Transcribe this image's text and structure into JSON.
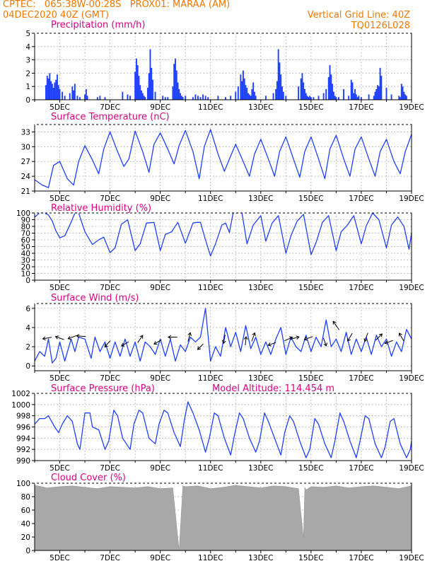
{
  "header": {
    "line1_left": "CPTEC:   065:38W-00:28S   PROX01: MARAA (AM)",
    "line2_left": "04DEC2020 40Z (GMT)",
    "line2_right": "Vertical Grid Line: 40Z",
    "line3_right": "TQ0126L028"
  },
  "colors": {
    "header": "#f07800",
    "title": "#e0007f",
    "series": "#2040ff",
    "cloud": "#a8a8a8"
  },
  "chart_data": [
    {
      "id": "precip",
      "type": "bar",
      "title": "Precipitation (mm/h)",
      "ylim": [
        0,
        5
      ],
      "yticks": [
        0,
        1,
        2,
        3,
        4,
        5
      ],
      "xlim_day": [
        4.0,
        19.0
      ],
      "xticks": [
        "5DEC",
        "7DEC",
        "9DEC",
        "11DEC",
        "13DEC",
        "15DEC",
        "17DEC",
        "19DEC"
      ],
      "x_day": [
        4.45,
        4.5,
        4.55,
        4.6,
        4.65,
        4.7,
        4.75,
        4.8,
        4.85,
        4.9,
        4.95,
        5.0,
        5.1,
        5.2,
        5.4,
        5.5,
        5.55,
        5.6,
        5.7,
        5.8,
        6.0,
        6.05,
        6.1,
        6.5,
        6.6,
        6.8,
        7.5,
        7.7,
        7.8,
        8.0,
        8.05,
        8.1,
        8.15,
        8.2,
        8.25,
        8.3,
        8.35,
        8.4,
        8.5,
        8.55,
        8.6,
        8.65,
        8.7,
        8.8,
        9.1,
        9.2,
        9.3,
        9.5,
        9.55,
        9.6,
        9.65,
        9.7,
        9.75,
        9.8,
        9.85,
        9.9,
        10.0,
        10.3,
        10.4,
        10.5,
        10.6,
        10.7,
        10.8,
        10.9,
        11.3,
        11.6,
        11.8,
        12.0,
        12.1,
        12.2,
        12.25,
        12.3,
        12.35,
        12.4,
        12.45,
        12.5,
        12.55,
        12.6,
        12.65,
        12.7,
        12.75,
        12.8,
        13.2,
        13.5,
        13.6,
        13.65,
        13.7,
        13.75,
        13.8,
        13.85,
        13.9,
        14.0,
        14.5,
        14.6,
        14.65,
        14.7,
        14.75,
        14.8,
        14.85,
        14.9,
        14.95,
        15.0,
        15.1,
        15.3,
        15.5,
        15.6,
        15.7,
        15.75,
        15.8,
        15.85,
        15.9,
        15.95,
        16.0,
        16.1,
        16.3,
        16.5,
        16.6,
        16.65,
        16.7,
        16.75,
        16.8,
        16.85,
        16.9,
        17.0,
        17.3,
        17.5,
        17.55,
        17.6,
        17.65,
        17.7,
        17.75,
        17.8,
        18.0,
        18.2,
        18.5,
        18.55,
        18.6,
        18.65,
        18.7,
        18.75,
        18.8
      ],
      "values": [
        1.1,
        1.8,
        1.6,
        2.0,
        1.4,
        1.2,
        0.9,
        1.3,
        1.5,
        1.9,
        1.1,
        0.8,
        0.6,
        0.3,
        0.5,
        1.0,
        0.7,
        1.2,
        0.3,
        0.2,
        0.4,
        0.8,
        0.3,
        0.2,
        0.3,
        0.2,
        0.6,
        0.4,
        0.3,
        2.1,
        3.1,
        2.6,
        1.8,
        1.1,
        0.7,
        0.5,
        0.3,
        0.2,
        0.9,
        2.0,
        3.8,
        2.4,
        1.5,
        0.6,
        0.3,
        0.2,
        0.2,
        1.0,
        2.7,
        3.1,
        2.2,
        1.3,
        0.8,
        0.5,
        0.3,
        0.2,
        0.3,
        0.2,
        0.4,
        0.3,
        0.2,
        0.4,
        0.3,
        0.2,
        0.3,
        0.2,
        0.3,
        0.6,
        1.0,
        1.9,
        1.4,
        2.2,
        1.6,
        1.1,
        0.9,
        0.5,
        0.4,
        0.3,
        0.8,
        1.3,
        0.6,
        0.3,
        0.3,
        0.5,
        0.8,
        1.4,
        3.8,
        2.8,
        1.9,
        1.0,
        0.6,
        0.3,
        1.0,
        1.6,
        2.0,
        1.3,
        0.8,
        0.5,
        0.3,
        0.2,
        0.3,
        0.2,
        0.2,
        0.3,
        0.5,
        0.8,
        1.7,
        2.6,
        1.9,
        1.2,
        0.6,
        0.3,
        0.2,
        0.2,
        0.8,
        0.3,
        1.5,
        1.3,
        0.5,
        0.8,
        0.4,
        0.2,
        0.3,
        0.2,
        0.4,
        0.3,
        0.6,
        0.8,
        1.1,
        1.0,
        2.4,
        1.8,
        0.9,
        0.4,
        0.3,
        0.2,
        1.2,
        1.0,
        0.6,
        0.4,
        0.3
      ]
    },
    {
      "id": "temp",
      "type": "line",
      "title": "Surface Temperature (nC)",
      "ylim": [
        21,
        34.5
      ],
      "yticks": [
        21,
        24,
        27,
        30,
        33
      ],
      "xlim_day": [
        4.0,
        19.0
      ],
      "xticks": [
        "5DEC",
        "7DEC",
        "9DEC",
        "11DEC",
        "13DEC",
        "15DEC",
        "17DEC",
        "19DEC"
      ],
      "x_day": [
        4.0,
        4.3,
        4.55,
        4.75,
        5.0,
        5.3,
        5.55,
        5.75,
        6.0,
        6.3,
        6.55,
        6.75,
        7.0,
        7.3,
        7.55,
        7.75,
        8.0,
        8.3,
        8.55,
        8.75,
        9.0,
        9.3,
        9.55,
        9.75,
        10.0,
        10.3,
        10.55,
        10.75,
        11.0,
        11.3,
        11.55,
        11.75,
        12.0,
        12.3,
        12.55,
        12.75,
        13.0,
        13.3,
        13.55,
        13.75,
        14.0,
        14.3,
        14.55,
        14.75,
        15.0,
        15.3,
        15.55,
        15.75,
        16.0,
        16.3,
        16.55,
        16.75,
        17.0,
        17.3,
        17.55,
        17.75,
        18.0,
        18.3,
        18.55,
        18.75,
        19.0
      ],
      "values": [
        23.3,
        22.2,
        21.7,
        26.2,
        27.0,
        23.5,
        22.2,
        27.0,
        30.2,
        27.3,
        24.5,
        29.5,
        33.0,
        29.0,
        26.0,
        27.5,
        33.2,
        29.0,
        24.8,
        30.5,
        32.8,
        29.5,
        26.5,
        30.2,
        33.3,
        29.0,
        23.5,
        30.0,
        33.5,
        28.5,
        25.0,
        27.5,
        30.5,
        27.0,
        24.0,
        28.5,
        31.5,
        27.5,
        24.0,
        29.0,
        32.0,
        27.5,
        23.8,
        29.0,
        32.0,
        27.5,
        23.5,
        29.5,
        32.3,
        27.5,
        24.0,
        29.5,
        32.0,
        27.5,
        24.0,
        29.0,
        31.5,
        27.0,
        24.5,
        29.0,
        32.5
      ]
    },
    {
      "id": "rh",
      "type": "line",
      "title": "Relative Humidity (%)",
      "ylim": [
        0,
        100
      ],
      "yticks": [
        0,
        10,
        20,
        30,
        40,
        50,
        60,
        70,
        80,
        90,
        100
      ],
      "xlim_day": [
        4.0,
        19.0
      ],
      "xticks": [
        "5DEC",
        "7DEC",
        "9DEC",
        "11DEC",
        "13DEC",
        "15DEC",
        "17DEC",
        "19DEC"
      ],
      "x_day": [
        4.0,
        4.2,
        4.4,
        4.55,
        4.7,
        4.85,
        5.0,
        5.2,
        5.45,
        5.6,
        5.75,
        6.0,
        6.3,
        6.55,
        6.75,
        7.0,
        7.2,
        7.45,
        7.7,
        8.0,
        8.2,
        8.45,
        8.75,
        9.0,
        9.2,
        9.45,
        9.7,
        10.0,
        10.3,
        10.45,
        10.6,
        10.8,
        11.0,
        11.2,
        11.45,
        11.6,
        11.75,
        11.9,
        12.05,
        12.25,
        12.45,
        12.7,
        13.0,
        13.2,
        13.45,
        13.7,
        14.0,
        14.2,
        14.45,
        14.7,
        15.0,
        15.2,
        15.45,
        15.7,
        16.0,
        16.2,
        16.45,
        16.7,
        17.0,
        17.2,
        17.45,
        17.7,
        18.0,
        18.2,
        18.45,
        18.7,
        18.9,
        19.0
      ],
      "values": [
        94,
        100,
        100,
        97,
        88,
        73,
        63,
        66,
        86,
        100,
        100,
        72,
        53,
        60,
        64,
        41,
        48,
        83,
        90,
        44,
        54,
        85,
        86,
        44,
        68,
        72,
        86,
        55,
        85,
        86,
        86,
        60,
        36,
        54,
        82,
        85,
        71,
        100,
        100,
        100,
        54,
        82,
        96,
        58,
        85,
        96,
        40,
        66,
        88,
        98,
        38,
        56,
        86,
        96,
        44,
        72,
        82,
        96,
        54,
        81,
        100,
        90,
        48,
        82,
        94,
        80,
        46,
        70
      ]
    },
    {
      "id": "wind",
      "type": "line",
      "title": "Surface Wind (m/s)",
      "ylim": [
        -0.5,
        6.5
      ],
      "yticks": [
        0,
        2,
        4,
        6
      ],
      "xlim_day": [
        4.0,
        19.0
      ],
      "xticks": [
        "5DEC",
        "7DEC",
        "9DEC",
        "11DEC",
        "13DEC",
        "15DEC",
        "17DEC",
        "19DEC"
      ],
      "x_day": [
        4.0,
        4.2,
        4.4,
        4.55,
        4.7,
        4.85,
        5.0,
        5.2,
        5.45,
        5.6,
        5.75,
        6.0,
        6.25,
        6.4,
        6.6,
        6.8,
        7.0,
        7.2,
        7.4,
        7.6,
        7.8,
        8.0,
        8.2,
        8.4,
        8.6,
        8.8,
        9.0,
        9.2,
        9.4,
        9.6,
        9.8,
        10.0,
        10.2,
        10.4,
        10.6,
        10.8,
        11.0,
        11.2,
        11.4,
        11.6,
        11.8,
        12.0,
        12.2,
        12.4,
        12.6,
        12.8,
        13.0,
        13.2,
        13.4,
        13.6,
        13.8,
        14.0,
        14.2,
        14.4,
        14.6,
        14.8,
        15.0,
        15.2,
        15.4,
        15.6,
        15.8,
        16.0,
        16.2,
        16.4,
        16.6,
        16.8,
        17.0,
        17.2,
        17.4,
        17.6,
        17.8,
        18.0,
        18.2,
        18.4,
        18.6,
        18.8,
        19.0
      ],
      "values": [
        0.5,
        1.5,
        1.0,
        2.8,
        0.3,
        0.8,
        2.5,
        0.5,
        2.8,
        1.5,
        3.0,
        2.8,
        0.8,
        3.0,
        1.5,
        2.5,
        0.8,
        2.5,
        1.0,
        2.8,
        1.0,
        2.5,
        0.5,
        2.5,
        2.0,
        1.2,
        2.8,
        1.0,
        2.8,
        0.5,
        2.2,
        1.5,
        3.0,
        2.5,
        3.0,
        6.0,
        0.5,
        2.0,
        1.0,
        4.0,
        2.0,
        3.5,
        1.5,
        4.2,
        1.8,
        3.0,
        1.2,
        2.5,
        1.2,
        2.8,
        4.0,
        1.2,
        3.0,
        2.0,
        1.5,
        3.2,
        1.5,
        3.0,
        2.0,
        4.8,
        2.0,
        2.8,
        1.5,
        3.5,
        1.2,
        2.8,
        1.5,
        3.0,
        1.2,
        3.2,
        2.0,
        2.8,
        1.0,
        2.5,
        1.5,
        3.8,
        2.8
      ],
      "arrows": [
        {
          "day": 4.5,
          "speed": 2.9,
          "dir_deg": 190
        },
        {
          "day": 5.0,
          "speed": 2.9,
          "dir_deg": 160
        },
        {
          "day": 5.5,
          "speed": 3.0,
          "dir_deg": 200
        },
        {
          "day": 5.85,
          "speed": 3.1,
          "dir_deg": 175
        },
        {
          "day": 6.9,
          "speed": 2.3,
          "dir_deg": 230
        },
        {
          "day": 7.6,
          "speed": 2.3,
          "dir_deg": 210
        },
        {
          "day": 8.2,
          "speed": 2.8,
          "dir_deg": 55
        },
        {
          "day": 8.9,
          "speed": 2.5,
          "dir_deg": 210
        },
        {
          "day": 9.5,
          "speed": 3.0,
          "dir_deg": 180
        },
        {
          "day": 10.15,
          "speed": 3.0,
          "dir_deg": 75
        },
        {
          "day": 10.6,
          "speed": 2.0,
          "dir_deg": 225
        },
        {
          "day": 11.55,
          "speed": 2.8,
          "dir_deg": 260
        },
        {
          "day": 12.4,
          "speed": 2.6,
          "dir_deg": 85
        },
        {
          "day": 12.7,
          "speed": 3.0,
          "dir_deg": 70
        },
        {
          "day": 13.45,
          "speed": 2.3,
          "dir_deg": 200
        },
        {
          "day": 14.1,
          "speed": 2.8,
          "dir_deg": 25
        },
        {
          "day": 14.35,
          "speed": 2.9,
          "dir_deg": 15
        },
        {
          "day": 14.9,
          "speed": 2.9,
          "dir_deg": 200
        },
        {
          "day": 15.55,
          "speed": 2.5,
          "dir_deg": 290
        },
        {
          "day": 16.0,
          "speed": 4.2,
          "dir_deg": 125
        },
        {
          "day": 16.55,
          "speed": 3.0,
          "dir_deg": 240
        },
        {
          "day": 17.2,
          "speed": 3.0,
          "dir_deg": 250
        },
        {
          "day": 17.7,
          "speed": 3.0,
          "dir_deg": 45
        },
        {
          "day": 18.1,
          "speed": 2.5,
          "dir_deg": 200
        },
        {
          "day": 18.6,
          "speed": 3.0,
          "dir_deg": 120
        }
      ]
    },
    {
      "id": "pres",
      "type": "line",
      "title": "Surface Pressure (hPa)",
      "annotation": "Model Altitude: 114.454 m",
      "ylim": [
        990,
        1002
      ],
      "yticks": [
        990,
        992,
        994,
        996,
        998,
        1000,
        1002
      ],
      "xlim_day": [
        4.0,
        19.0
      ],
      "xticks": [
        "5DEC",
        "7DEC",
        "9DEC",
        "11DEC",
        "13DEC",
        "15DEC",
        "17DEC",
        "19DEC"
      ],
      "x_day": [
        4.0,
        4.2,
        4.4,
        4.55,
        4.8,
        4.95,
        5.1,
        5.3,
        5.5,
        5.7,
        5.8,
        6.0,
        6.2,
        6.3,
        6.55,
        6.8,
        6.95,
        7.15,
        7.3,
        7.5,
        7.8,
        7.95,
        8.15,
        8.3,
        8.55,
        8.8,
        8.95,
        9.15,
        9.3,
        9.55,
        9.8,
        9.95,
        10.1,
        10.3,
        10.55,
        10.8,
        10.95,
        11.15,
        11.3,
        11.55,
        11.8,
        11.95,
        12.15,
        12.3,
        12.55,
        12.8,
        12.95,
        13.15,
        13.3,
        13.55,
        13.8,
        13.95,
        14.15,
        14.3,
        14.55,
        14.8,
        14.95,
        15.15,
        15.3,
        15.55,
        15.8,
        15.95,
        16.15,
        16.3,
        16.55,
        16.8,
        16.95,
        17.15,
        17.3,
        17.55,
        17.8,
        17.95,
        18.15,
        18.3,
        18.55,
        18.8,
        18.95,
        19.0
      ],
      "values": [
        996.5,
        997.5,
        997.5,
        998.0,
        996.0,
        995.0,
        996.5,
        998.0,
        997.0,
        993.0,
        992.0,
        998.5,
        998.5,
        996.0,
        995.5,
        992.0,
        993.5,
        999.0,
        998.0,
        994.0,
        992.0,
        996.5,
        999.0,
        998.5,
        994.0,
        993.0,
        996.5,
        999.0,
        998.5,
        995.0,
        992.5,
        997.0,
        1000.5,
        998.5,
        995.5,
        991.5,
        994.0,
        998.5,
        998.0,
        994.0,
        991.0,
        994.5,
        998.5,
        997.5,
        994.0,
        991.5,
        993.5,
        998.5,
        997.0,
        994.0,
        991.0,
        995.0,
        998.0,
        997.0,
        993.5,
        990.5,
        992.0,
        997.5,
        996.5,
        993.0,
        990.5,
        993.5,
        998.5,
        997.0,
        993.5,
        990.5,
        993.5,
        998.0,
        997.5,
        993.0,
        990.5,
        992.5,
        997.0,
        997.5,
        993.0,
        990.5,
        992.0,
        993.5
      ]
    },
    {
      "id": "cloud",
      "type": "area",
      "title": "Cloud Cover (%)",
      "ylim": [
        0,
        100
      ],
      "yticks": [
        0,
        20,
        40,
        60,
        80,
        100
      ],
      "xlim_day": [
        4.0,
        19.0
      ],
      "xticks": [
        "5DEC",
        "7DEC",
        "9DEC",
        "11DEC",
        "13DEC",
        "15DEC",
        "17DEC",
        "19DEC"
      ],
      "x_day": [
        4.0,
        4.5,
        5.0,
        5.5,
        6.0,
        6.5,
        7.0,
        7.5,
        8.0,
        8.5,
        9.0,
        9.5,
        9.75,
        9.9,
        10.0,
        10.5,
        11.0,
        11.5,
        12.0,
        12.5,
        13.0,
        13.5,
        14.0,
        14.5,
        14.7,
        14.75,
        14.8,
        15.0,
        15.5,
        16.0,
        16.5,
        17.0,
        17.5,
        18.0,
        18.5,
        19.0
      ],
      "values": [
        97,
        93,
        95,
        96,
        94,
        92,
        95,
        94,
        93,
        95,
        92,
        93,
        0,
        96,
        95,
        96,
        92,
        94,
        97,
        95,
        93,
        96,
        95,
        92,
        18,
        94,
        90,
        95,
        94,
        96,
        93,
        95,
        96,
        94,
        92,
        96
      ]
    }
  ]
}
